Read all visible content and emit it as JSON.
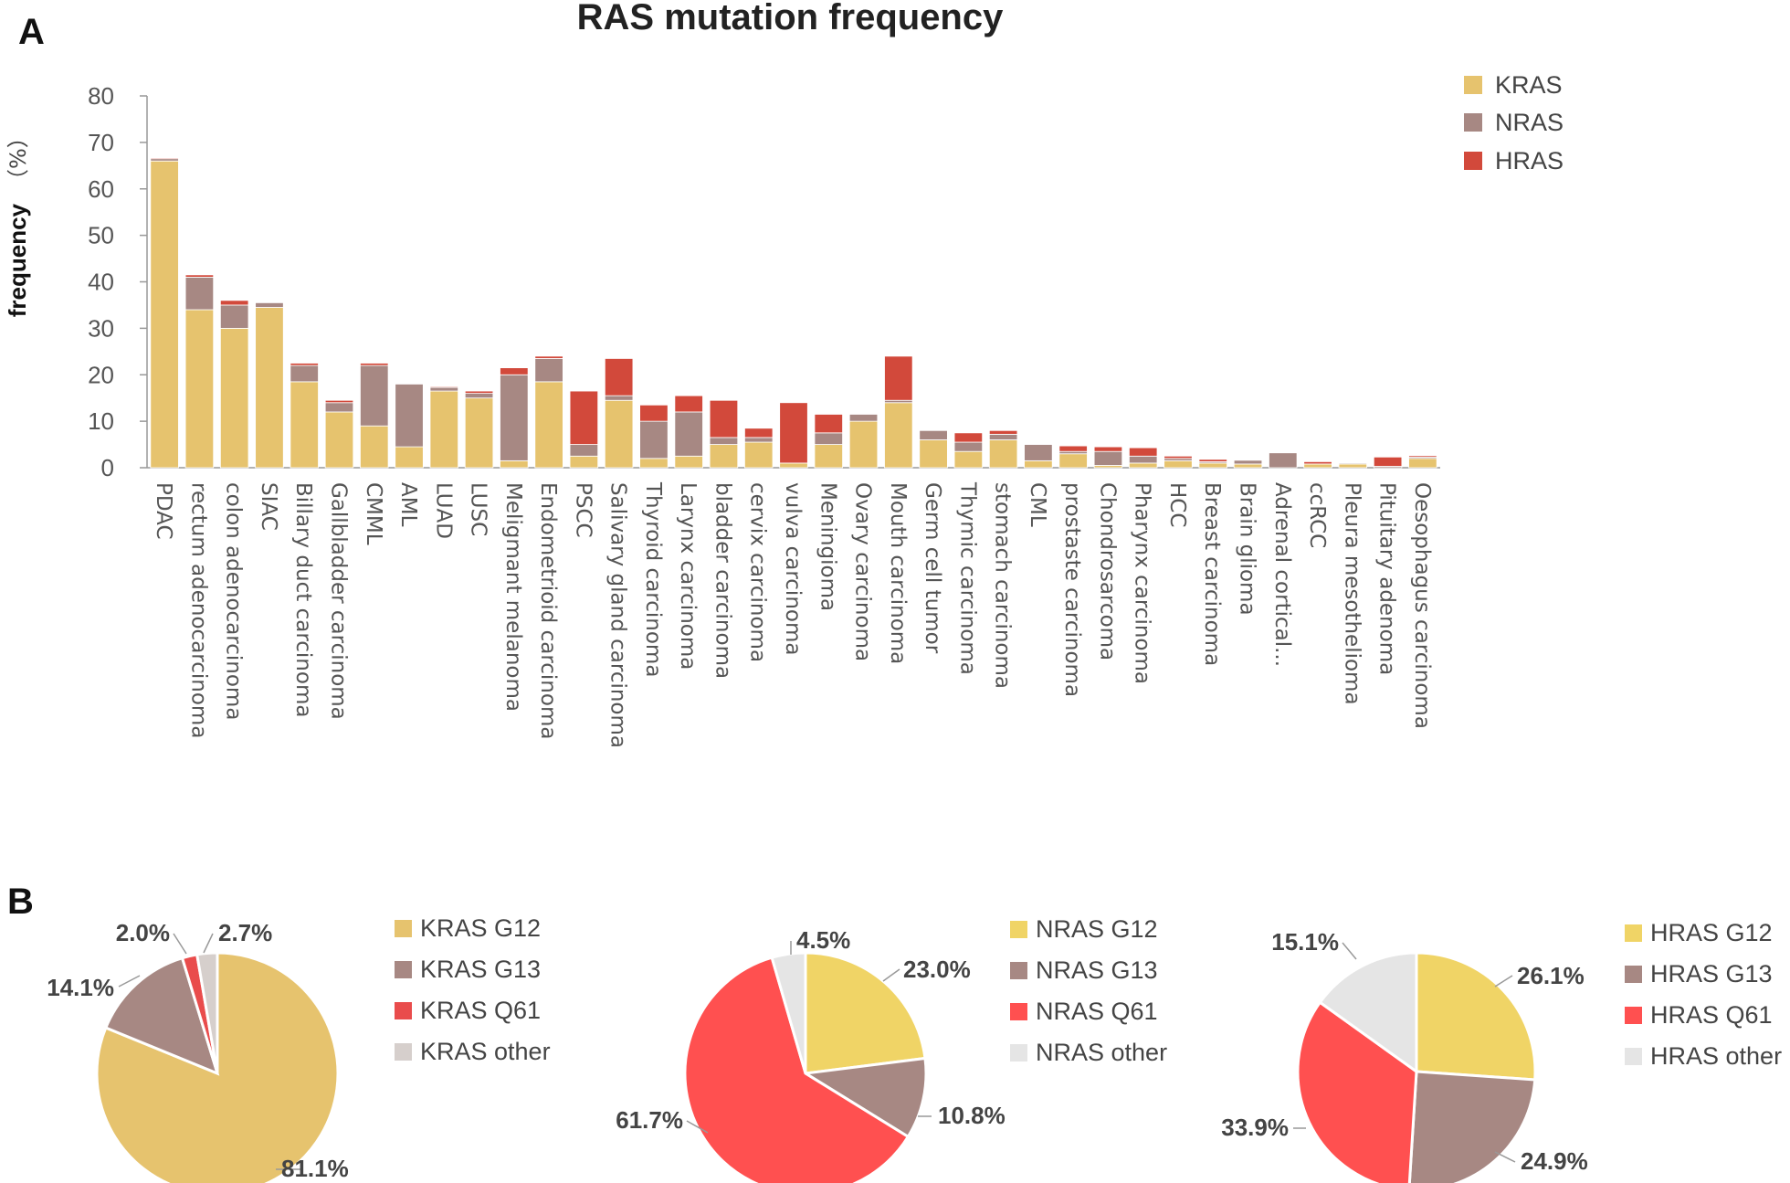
{
  "figure": {
    "panel_a": "A",
    "panel_b": "B"
  },
  "chart_data": [
    {
      "type": "bar",
      "stacked": true,
      "title": "RAS mutation frequency",
      "ylabel": "frequency",
      "yunit": "（%）",
      "xlabel": "",
      "ylim": [
        0,
        80
      ],
      "yticks": [
        0,
        10,
        20,
        30,
        40,
        50,
        60,
        70,
        80
      ],
      "legend_position": "top-right",
      "colors": {
        "KRAS": "#E6C36E",
        "NRAS": "#A78883",
        "HRAS": "#D2493B"
      },
      "categories": [
        "PDAC",
        "rectum adenocarcinoma",
        "colon adenocarcinoma",
        "SIAC",
        "Billary duct carcinoma",
        "Gallbladder carcinoma",
        "CMML",
        "AML",
        "LUAD",
        "LUSC",
        "Meligmant melanoma",
        "Endometrioid carcinoma",
        "PSCC",
        "Salivary gland carcinoma",
        "Thyroid carcinoma",
        "Larynx carcinoma",
        "bladder carcinoma",
        "cervix carcinoma",
        "vulva carcinoma",
        "Meningioma",
        "Ovary carcinoma",
        "Mouth carcinoma",
        "Germ cell tumor",
        "Thymic carcinoma",
        "stomach carcinoma",
        "CML",
        "prostaste carcinoma",
        "Chondrosarcoma",
        "Pharynx carcinoma",
        "HCC",
        "Breast carcinoma",
        "Brain glioma",
        "Adrenal cortical...",
        "ccRCC",
        "Pleura mesothelioma",
        "Pituitary adenoma",
        "Oesophagus carcinoma"
      ],
      "series": [
        {
          "name": "KRAS",
          "values": [
            66,
            34,
            30,
            34.5,
            18.5,
            12,
            9,
            4.5,
            16.5,
            15,
            1.5,
            18.5,
            2.5,
            14.5,
            2,
            2.5,
            5,
            5.5,
            1,
            5,
            10,
            14,
            6,
            3.5,
            6,
            1.5,
            3,
            0.5,
            1,
            1.5,
            1,
            0.8,
            0,
            0.8,
            0.8,
            0,
            2
          ]
        },
        {
          "name": "NRAS",
          "values": [
            0.5,
            7,
            5,
            1,
            3.5,
            2,
            13,
            13.5,
            0.8,
            1,
            18.5,
            5,
            2.5,
            1,
            8,
            9.5,
            1.5,
            1,
            0,
            2.5,
            1.5,
            0.5,
            2,
            2,
            1.2,
            3.5,
            0.5,
            3,
            1.5,
            0.5,
            0.3,
            0.8,
            3.2,
            0,
            0.2,
            0.3,
            0.3
          ]
        },
        {
          "name": "HRAS",
          "values": [
            0.2,
            0.5,
            1,
            0,
            0.5,
            0.5,
            0.5,
            0,
            0.2,
            0.5,
            1.5,
            0.5,
            11.5,
            8,
            3.5,
            3.5,
            8,
            2,
            13,
            4,
            0,
            9.5,
            0,
            2,
            0.8,
            0,
            1.2,
            1,
            1.8,
            0.5,
            0.5,
            0,
            0,
            0.5,
            0,
            2,
            0.3
          ]
        }
      ]
    },
    {
      "type": "pie",
      "legend_position": "right",
      "labels": [
        "KRAS G12",
        "KRAS G13",
        "KRAS Q61",
        "KRAS other"
      ],
      "values": [
        81.1,
        14.1,
        2.0,
        2.7
      ],
      "value_labels": [
        "81.1%",
        "14.1%",
        "2.0%",
        "2.7%"
      ],
      "colors": [
        "#E6C36E",
        "#A78883",
        "#E94C4C",
        "#D6CFCC"
      ]
    },
    {
      "type": "pie",
      "legend_position": "right",
      "labels": [
        "NRAS G12",
        "NRAS G13",
        "NRAS Q61",
        "NRAS other"
      ],
      "values": [
        23.0,
        10.8,
        61.7,
        4.5
      ],
      "value_labels": [
        "23.0%",
        "10.8%",
        "61.7%",
        "4.5%"
      ],
      "colors": [
        "#F0D466",
        "#A78883",
        "#FF5050",
        "#E5E5E5"
      ]
    },
    {
      "type": "pie",
      "legend_position": "right",
      "labels": [
        "HRAS G12",
        "HRAS G13",
        "HRAS Q61",
        "HRAS other"
      ],
      "values": [
        26.1,
        24.9,
        33.9,
        15.1
      ],
      "value_labels": [
        "26.1%",
        "24.9%",
        "33.9%",
        "15.1%"
      ],
      "colors": [
        "#F0D466",
        "#A78883",
        "#FF5050",
        "#E5E5E5"
      ]
    }
  ]
}
